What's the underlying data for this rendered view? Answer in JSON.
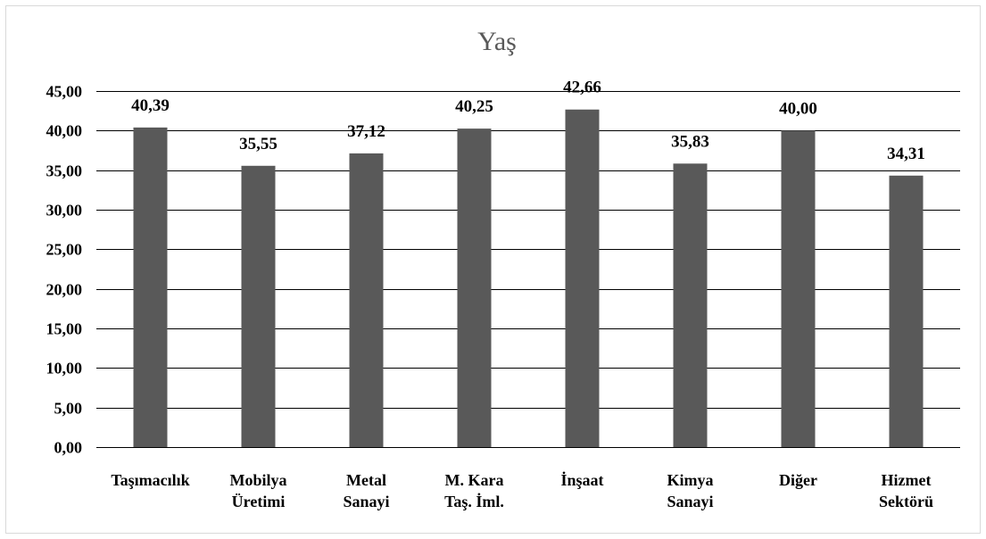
{
  "chart_data": {
    "type": "bar",
    "title": "Yaş",
    "xlabel": "",
    "ylabel": "",
    "ylim": [
      0,
      45
    ],
    "ytick_step": 5,
    "ytick_labels": [
      "0,00",
      "5,00",
      "10,00",
      "15,00",
      "20,00",
      "25,00",
      "30,00",
      "35,00",
      "40,00",
      "45,00"
    ],
    "categories": [
      [
        "Taşımacılık"
      ],
      [
        "Mobilya",
        "Üretimi"
      ],
      [
        "Metal",
        "Sanayi"
      ],
      [
        "M. Kara",
        "Taş. İml."
      ],
      [
        "İnşaat"
      ],
      [
        "Kimya",
        "Sanayi"
      ],
      [
        "Diğer"
      ],
      [
        "Hizmet",
        "Sektörü"
      ]
    ],
    "values": [
      40.39,
      35.55,
      37.12,
      40.25,
      42.66,
      35.83,
      40.0,
      34.31
    ],
    "data_labels": [
      "40,39",
      "35,55",
      "37,12",
      "40,25",
      "42,66",
      "35,83",
      "40,00",
      "34,31"
    ],
    "bar_color": "#595959",
    "grid": true,
    "legend": "none"
  }
}
